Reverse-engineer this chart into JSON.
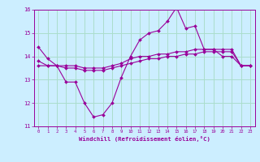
{
  "xlabel": "Windchill (Refroidissement éolien,°C)",
  "ylabel": "",
  "background_color": "#cceeff",
  "grid_color": "#aaddcc",
  "line_color": "#990099",
  "xlim": [
    -0.5,
    23.5
  ],
  "ylim": [
    11,
    16
  ],
  "xticks": [
    0,
    1,
    2,
    3,
    4,
    5,
    6,
    7,
    8,
    9,
    10,
    11,
    12,
    13,
    14,
    15,
    16,
    17,
    18,
    19,
    20,
    21,
    22,
    23
  ],
  "yticks": [
    11,
    12,
    13,
    14,
    15,
    16
  ],
  "hours": [
    0,
    1,
    2,
    3,
    4,
    5,
    6,
    7,
    8,
    9,
    10,
    11,
    12,
    13,
    14,
    15,
    16,
    17,
    18,
    19,
    20,
    21,
    22,
    23
  ],
  "line1": [
    14.4,
    13.9,
    13.6,
    12.9,
    12.9,
    12.0,
    11.4,
    11.5,
    12.0,
    13.1,
    14.0,
    14.7,
    15.0,
    15.1,
    15.5,
    16.1,
    15.2,
    15.3,
    14.3,
    14.3,
    14.0,
    14.0,
    13.6,
    13.6
  ],
  "line2": [
    13.8,
    13.6,
    13.6,
    13.6,
    13.6,
    13.5,
    13.5,
    13.5,
    13.6,
    13.7,
    13.9,
    14.0,
    14.0,
    14.1,
    14.1,
    14.2,
    14.2,
    14.3,
    14.3,
    14.3,
    14.3,
    14.3,
    13.6,
    13.6
  ],
  "line3": [
    13.6,
    13.6,
    13.6,
    13.5,
    13.5,
    13.4,
    13.4,
    13.4,
    13.5,
    13.6,
    13.7,
    13.8,
    13.9,
    13.9,
    14.0,
    14.0,
    14.1,
    14.1,
    14.2,
    14.2,
    14.2,
    14.2,
    13.6,
    13.6
  ]
}
